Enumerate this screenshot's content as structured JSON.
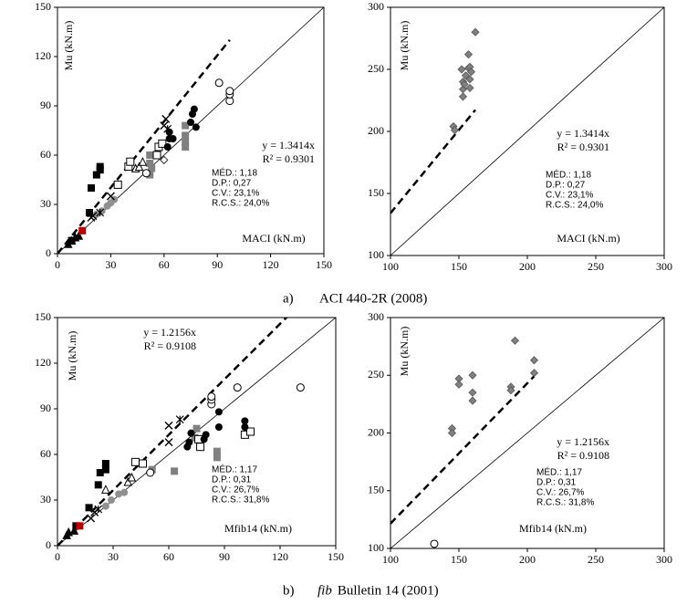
{
  "chart_data": [
    {
      "type": "scatter",
      "caption": {
        "label": "a)",
        "text": "ACI 440-2R (2008)"
      },
      "x_label": "MACI (kN.m)",
      "y_label": "Mu (kN.m)",
      "xlim": [
        0,
        150
      ],
      "ylim": [
        0,
        150
      ],
      "xticks": [
        0,
        30,
        60,
        90,
        120,
        150
      ],
      "yticks": [
        0,
        30,
        60,
        90,
        120,
        150
      ],
      "trendline": {
        "slope": 1.3414,
        "label": "y = 1.3414x"
      },
      "r2": "R² = 0.9301",
      "stats": [
        "MÉD.: 1,18",
        "D.P.: 0,27",
        "C.V.: 23,1%",
        "R.C.S.: 24,0%"
      ],
      "series": [
        {
          "marker": "square",
          "color": "#000000",
          "x": [
            18,
            19,
            22,
            24,
            24,
            8
          ],
          "values": [
            25,
            40,
            48,
            51,
            53,
            8
          ]
        },
        {
          "marker": "square",
          "color": "#808080",
          "x": [
            52,
            52,
            52,
            53,
            72,
            72,
            72,
            72
          ],
          "values": [
            48,
            55,
            60,
            52,
            65,
            68,
            72,
            78
          ]
        },
        {
          "marker": "open-square",
          "color": "#000000",
          "x": [
            56,
            57,
            59,
            40,
            41,
            34
          ],
          "values": [
            60,
            65,
            67,
            53,
            56,
            42
          ]
        },
        {
          "marker": "circle",
          "color": "#000000",
          "x": [
            62,
            63,
            63,
            65,
            75,
            76,
            77,
            78
          ],
          "values": [
            65,
            70,
            74,
            70,
            80,
            85,
            88,
            77
          ]
        },
        {
          "marker": "open-circle",
          "color": "#000000",
          "x": [
            91,
            97,
            97,
            97,
            50
          ],
          "values": [
            104,
            93,
            97,
            99,
            49
          ]
        },
        {
          "marker": "circle",
          "color": "#909090",
          "x": [
            22,
            25,
            28,
            30,
            32
          ],
          "values": [
            24,
            26,
            29,
            31,
            33
          ]
        },
        {
          "marker": "triangle",
          "color": "#000000",
          "x": [
            6,
            8,
            10,
            12
          ],
          "values": [
            6,
            8,
            10,
            11
          ]
        },
        {
          "marker": "open-triangle",
          "color": "#000000",
          "x": [
            44,
            46,
            48
          ],
          "values": [
            52,
            53,
            56
          ]
        },
        {
          "marker": "cross",
          "color": "#000000",
          "x": [
            60,
            61,
            30,
            19,
            20
          ],
          "values": [
            78,
            82,
            35,
            22,
            23
          ]
        },
        {
          "marker": "asterisk",
          "color": "#000000",
          "x": [
            62,
            24
          ],
          "values": [
            76,
            25
          ]
        },
        {
          "marker": "open-diamond",
          "color": "#000000",
          "x": [
            60
          ],
          "values": [
            57
          ]
        },
        {
          "marker": "square",
          "color": "#c00000",
          "x": [
            14
          ],
          "values": [
            14
          ]
        }
      ]
    },
    {
      "type": "scatter",
      "x_label": "MACI (kN.m)",
      "y_label": "Mu (kN.m)",
      "xlim": [
        100,
        300
      ],
      "ylim": [
        100,
        300
      ],
      "xticks": [
        100,
        150,
        200,
        250,
        300
      ],
      "yticks": [
        100,
        150,
        200,
        250,
        300
      ],
      "trendline": {
        "slope": 1.3414,
        "label": "y = 1.3414x"
      },
      "r2": "R² = 0.9301",
      "stats": [
        "MÉD.: 1,18",
        "D.P.: 0,27",
        "C.V.: 23,1%",
        "R.C.S.: 24,0%"
      ],
      "series": [
        {
          "marker": "diamond",
          "color": "#808080",
          "x": [
            146,
            147,
            152,
            153,
            153,
            153,
            154,
            155,
            157,
            157,
            158,
            158,
            159,
            162,
            158
          ],
          "values": [
            204,
            201,
            250,
            234,
            240,
            228,
            238,
            245,
            262,
            251,
            252,
            242,
            248,
            280,
            235
          ]
        }
      ]
    },
    {
      "type": "scatter",
      "caption": {
        "label": "b)",
        "emphasis": "fib",
        "text": "Bulletin 14 (2001)"
      },
      "x_label": "Mfib14 (kN.m)",
      "y_label": "Mu (kN.m)",
      "xlim": [
        0,
        150
      ],
      "ylim": [
        0,
        150
      ],
      "xticks": [
        0,
        30,
        60,
        90,
        120,
        150
      ],
      "yticks": [
        0,
        30,
        60,
        90,
        120,
        150
      ],
      "trendline": {
        "slope": 1.2156,
        "label": "y = 1.2156x"
      },
      "r2": "R² = 0.9108",
      "stats": [
        "MÉD.: 1,17",
        "D.P.: 0,31",
        "C.V.: 26,7%",
        "R.C.S.: 31,8%"
      ],
      "series": [
        {
          "marker": "square",
          "color": "#000000",
          "x": [
            10,
            17,
            22,
            23,
            26,
            26
          ],
          "values": [
            13,
            25,
            40,
            48,
            50,
            54
          ]
        },
        {
          "marker": "square",
          "color": "#808080",
          "x": [
            51,
            63,
            74,
            75,
            86,
            86
          ],
          "values": [
            50,
            49,
            71,
            77,
            58,
            62
          ]
        },
        {
          "marker": "open-square",
          "color": "#000000",
          "x": [
            42,
            46,
            76,
            77,
            101,
            104
          ],
          "values": [
            55,
            54,
            70,
            65,
            73,
            75
          ]
        },
        {
          "marker": "circle",
          "color": "#000000",
          "x": [
            70,
            71,
            72,
            79,
            80,
            87,
            87,
            101,
            101
          ],
          "values": [
            65,
            68,
            74,
            70,
            73,
            78,
            88,
            78,
            82
          ]
        },
        {
          "marker": "open-circle",
          "color": "#000000",
          "x": [
            83,
            83,
            83,
            97,
            131,
            50
          ],
          "values": [
            93,
            96,
            98,
            104,
            104,
            48
          ]
        },
        {
          "marker": "circle",
          "color": "#909090",
          "x": [
            26,
            29,
            33,
            36
          ],
          "values": [
            26,
            30,
            34,
            35
          ]
        },
        {
          "marker": "triangle",
          "color": "#000000",
          "x": [
            5,
            6,
            9
          ],
          "values": [
            7,
            9,
            10
          ]
        },
        {
          "marker": "open-triangle",
          "color": "#000000",
          "x": [
            26,
            38,
            40
          ],
          "values": [
            37,
            42,
            45
          ]
        },
        {
          "marker": "cross",
          "color": "#000000",
          "x": [
            60,
            60,
            20,
            18
          ],
          "values": [
            68,
            79,
            22,
            18
          ]
        },
        {
          "marker": "asterisk",
          "color": "#000000",
          "x": [
            66,
            22
          ],
          "values": [
            83,
            24
          ]
        },
        {
          "marker": "square",
          "color": "#c00000",
          "x": [
            12
          ],
          "values": [
            13
          ]
        }
      ]
    },
    {
      "type": "scatter",
      "x_label": "Mfib14 (kN.m)",
      "y_label": "Mu (kN.m)",
      "xlim": [
        100,
        300
      ],
      "ylim": [
        100,
        300
      ],
      "xticks": [
        100,
        150,
        200,
        250,
        300
      ],
      "yticks": [
        100,
        150,
        200,
        250,
        300
      ],
      "trendline": {
        "slope": 1.2156,
        "label": "y = 1.2156x"
      },
      "r2": "R² = 0.9108",
      "stats": [
        "MÉD.: 1,17",
        "D.P.: 0,31",
        "C.V.: 26,7%",
        "R.C.S.: 31,8%"
      ],
      "series": [
        {
          "marker": "diamond",
          "color": "#808080",
          "x": [
            145,
            145,
            150,
            150,
            160,
            160,
            160,
            188,
            188,
            191,
            205,
            205
          ],
          "values": [
            204,
            200,
            247,
            242,
            250,
            235,
            228,
            240,
            237,
            280,
            263,
            252
          ]
        },
        {
          "marker": "open-circle",
          "color": "#000000",
          "x": [
            132
          ],
          "values": [
            104
          ]
        }
      ]
    }
  ]
}
